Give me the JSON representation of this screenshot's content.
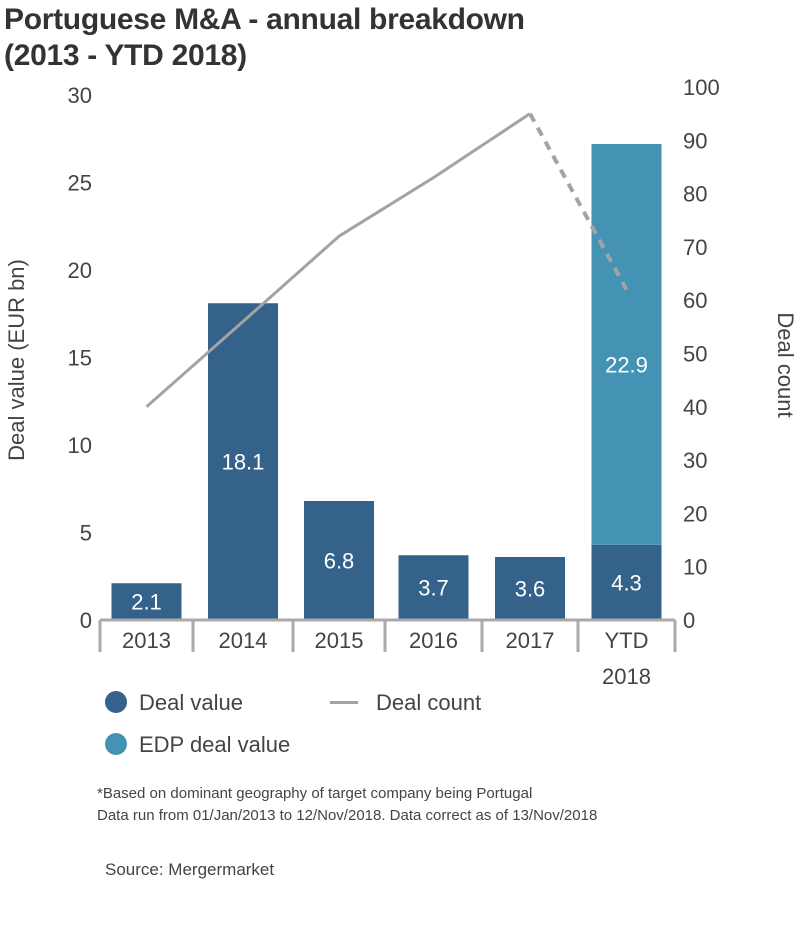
{
  "chart_data": {
    "type": "bar",
    "title": "Portuguese M&A - annual breakdown\n(2013 - YTD 2018)",
    "title_lines": [
      "Portuguese M&A - annual breakdown",
      "(2013 - YTD 2018)"
    ],
    "categories": [
      "2013",
      "2014",
      "2015",
      "2016",
      "2017",
      "YTD 2018"
    ],
    "category_lines": [
      [
        "2013"
      ],
      [
        "2014"
      ],
      [
        "2015"
      ],
      [
        "2016"
      ],
      [
        "2017"
      ],
      [
        "YTD",
        "2018"
      ]
    ],
    "ylabel": "Deal value (EUR bn)",
    "y2label": "Deal count",
    "ylim": [
      0,
      30
    ],
    "y2lim": [
      0,
      100
    ],
    "yticks": [
      "0",
      "5",
      "10",
      "15",
      "20",
      "25",
      "30"
    ],
    "y2ticks": [
      "0",
      "10",
      "20",
      "30",
      "40",
      "50",
      "60",
      "70",
      "80",
      "90",
      "100"
    ],
    "grid": false,
    "legend_position": "bottom-left",
    "series": [
      {
        "name": "Deal value",
        "type": "bar",
        "stack": "value",
        "color": "#35628a",
        "values": [
          2.1,
          18.1,
          6.8,
          3.7,
          3.6,
          4.3
        ],
        "labels": [
          "2.1",
          "18.1",
          "6.8",
          "3.7",
          "3.6",
          "4.3"
        ]
      },
      {
        "name": "EDP deal value",
        "type": "bar",
        "stack": "value",
        "color": "#4593b4",
        "values": [
          null,
          null,
          null,
          null,
          null,
          22.9
        ],
        "labels": [
          "",
          "",
          "",
          "",
          "",
          "22.9"
        ]
      },
      {
        "name": "Deal count",
        "type": "line",
        "axis": "right",
        "color": "#a3a3a3",
        "values": [
          40,
          56,
          72,
          83,
          95,
          62
        ],
        "dashed_last_segment": true
      }
    ]
  },
  "footnotes": [
    "*Based on dominant geography of target company being Portugal",
    "Data run from 01/Jan/2013 to 12/Nov/2018. Data correct as of 13/Nov/2018"
  ],
  "source": "Source: Mergermarket"
}
